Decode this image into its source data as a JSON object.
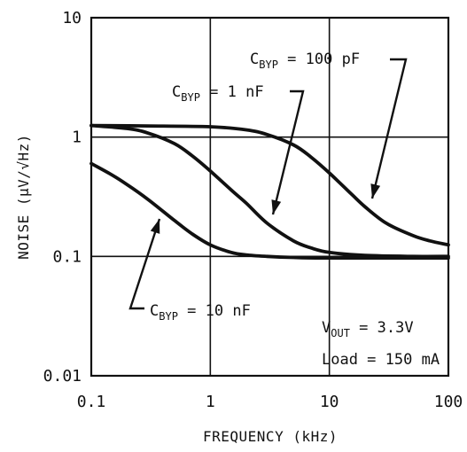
{
  "chart_data": {
    "type": "line",
    "title": "",
    "xlabel": "FREQUENCY (kHz)",
    "ylabel": "NOISE (µV/√Hz)",
    "xscale": "log",
    "yscale": "log",
    "xlim": [
      0.1,
      100
    ],
    "ylim": [
      0.01,
      10
    ],
    "grid": true,
    "x_ticks": [
      "0.1",
      "1",
      "10",
      "100"
    ],
    "y_ticks": [
      "0.01",
      "0.1",
      "1",
      "10"
    ],
    "series": [
      {
        "name": "CBYP = 100 pF",
        "label_main": "C",
        "label_sub": "BYP",
        "label_rest": " = 100 pF",
        "x": [
          0.1,
          0.3,
          1,
          2,
          3,
          5,
          7,
          10,
          15,
          20,
          30,
          50,
          70,
          100
        ],
        "y": [
          1.25,
          1.24,
          1.22,
          1.15,
          1.05,
          0.86,
          0.68,
          0.5,
          0.34,
          0.26,
          0.19,
          0.15,
          0.135,
          0.125
        ]
      },
      {
        "name": "CBYP = 1 nF",
        "label_main": "C",
        "label_sub": "BYP",
        "label_rest": " = 1 nF",
        "x": [
          0.1,
          0.2,
          0.3,
          0.5,
          0.7,
          1,
          1.5,
          2,
          3,
          5,
          7,
          10,
          20,
          50,
          100
        ],
        "y": [
          1.25,
          1.18,
          1.08,
          0.88,
          0.7,
          0.52,
          0.36,
          0.28,
          0.19,
          0.135,
          0.118,
          0.108,
          0.102,
          0.1,
          0.1
        ]
      },
      {
        "name": "CBYP = 10 nF",
        "label_main": "C",
        "label_sub": "BYP",
        "label_rest": " = 10 nF",
        "x": [
          0.1,
          0.15,
          0.2,
          0.3,
          0.5,
          0.7,
          1,
          1.5,
          2,
          3,
          5,
          10,
          100
        ],
        "y": [
          0.6,
          0.48,
          0.4,
          0.3,
          0.2,
          0.155,
          0.125,
          0.108,
          0.103,
          0.1,
          0.098,
          0.097,
          0.097
        ]
      }
    ],
    "annotations": [
      {
        "main": "V",
        "sub": "OUT",
        "rest": " = 3.3V"
      },
      {
        "main": "Load = 150 mA",
        "sub": "",
        "rest": ""
      }
    ]
  }
}
